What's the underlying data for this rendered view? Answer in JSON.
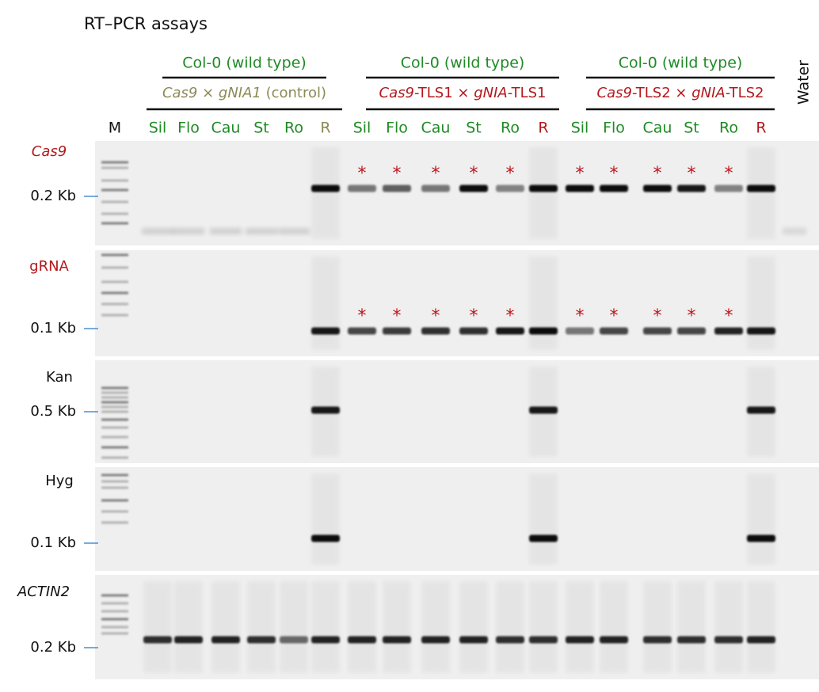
{
  "title": "RT–PCR assays",
  "marker_lane": "M",
  "water_lane": "Water",
  "significance_mark": "*",
  "groups": [
    {
      "header": "Col-0 (wild type)",
      "genotype": [
        {
          "text": "Cas9",
          "italic": true
        },
        {
          "text": " × ",
          "italic": false
        },
        {
          "text": "gNIA1",
          "italic": true
        },
        {
          "text": " (control)",
          "italic": false
        }
      ],
      "genotype_color": "#8c8a55",
      "lanes": [
        "Sil",
        "Flo",
        "Cau",
        "St",
        "Ro",
        "R"
      ]
    },
    {
      "header": "Col-0 (wild type)",
      "genotype": [
        {
          "text": "Cas9",
          "italic": true
        },
        {
          "text": "-TLS1 × ",
          "italic": false
        },
        {
          "text": "gNIA",
          "italic": true
        },
        {
          "text": "-TLS1",
          "italic": false
        }
      ],
      "genotype_color": "#b3181c",
      "lanes": [
        "Sil",
        "Flo",
        "Cau",
        "St",
        "Ro",
        "R"
      ]
    },
    {
      "header": "Col-0 (wild type)",
      "genotype": [
        {
          "text": "Cas9",
          "italic": true
        },
        {
          "text": "-TLS2 × ",
          "italic": false
        },
        {
          "text": "gNIA",
          "italic": true
        },
        {
          "text": "-TLS2",
          "italic": false
        }
      ],
      "genotype_color": "#b3181c",
      "lanes": [
        "Sil",
        "Flo",
        "Cau",
        "St",
        "Ro",
        "R"
      ]
    }
  ],
  "panels": [
    {
      "label": "Cas9",
      "italic": true,
      "color": "#b3181c",
      "size": "0.2 Kb"
    },
    {
      "label": "gRNA",
      "italic": false,
      "color": "#b3181c",
      "size": "0.1 Kb"
    },
    {
      "label": "Kan",
      "italic": false,
      "color": "#111111",
      "size": "0.5 Kb"
    },
    {
      "label": "Hyg",
      "italic": false,
      "color": "#111111",
      "size": "0.1 Kb"
    },
    {
      "label": "ACTIN2",
      "italic": true,
      "color": "#111111",
      "size": "0.2 Kb"
    }
  ]
}
